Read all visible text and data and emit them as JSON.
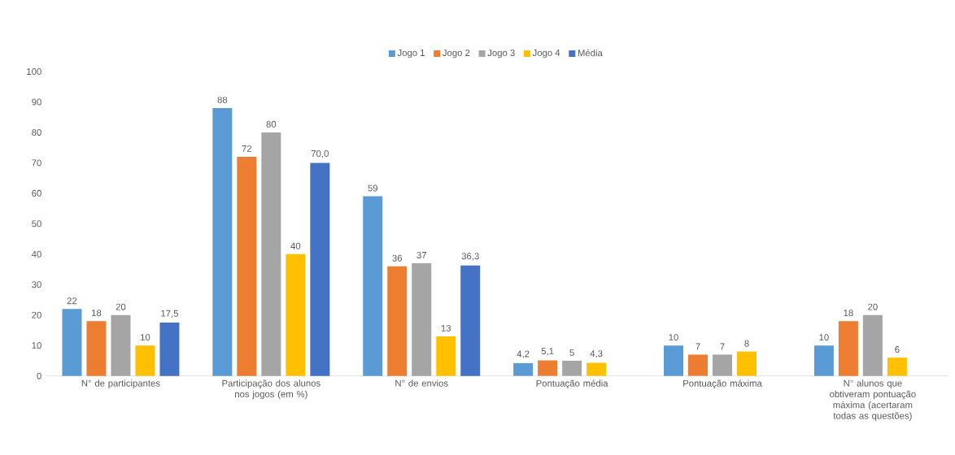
{
  "chart_data": {
    "type": "bar",
    "categories": [
      "N° de participantes",
      "Participação dos alunos nos jogos (em %)",
      "N° de envios",
      "Pontuação média",
      "Pontuação máxima",
      "N° alunos que obtiveram pontuação máxima (acertaram todas as questões)"
    ],
    "series": [
      {
        "name": "Jogo 1",
        "color": "#5b9bd5",
        "values": [
          22,
          88,
          59,
          4.2,
          10,
          10
        ],
        "value_labels": [
          "22",
          "88",
          "59",
          "4,2",
          "10",
          "10"
        ]
      },
      {
        "name": "Jogo 2",
        "color": "#ed7d31",
        "values": [
          18,
          72,
          36,
          5.1,
          7,
          18
        ],
        "value_labels": [
          "18",
          "72",
          "36",
          "5,1",
          "7",
          "18"
        ]
      },
      {
        "name": "Jogo 3",
        "color": "#a5a5a5",
        "values": [
          20,
          80,
          37,
          5,
          7,
          20
        ],
        "value_labels": [
          "20",
          "80",
          "37",
          "5",
          "7",
          "20"
        ]
      },
      {
        "name": "Jogo 4",
        "color": "#ffc000",
        "values": [
          10,
          40,
          13,
          4.3,
          8,
          6
        ],
        "value_labels": [
          "10",
          "40",
          "13",
          "4,3",
          "8",
          "6"
        ]
      },
      {
        "name": "Média",
        "color": "#4472c4",
        "values": [
          17.5,
          70.0,
          36.3,
          null,
          null,
          null
        ],
        "value_labels": [
          "17,5",
          "70,0",
          "36,3",
          null,
          null,
          null
        ]
      }
    ],
    "ylim": [
      0,
      100
    ],
    "yticks": [
      0,
      10,
      20,
      30,
      40,
      50,
      60,
      70,
      80,
      90,
      100
    ],
    "legend": "top"
  }
}
